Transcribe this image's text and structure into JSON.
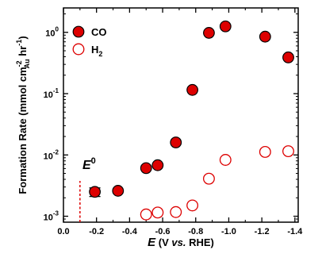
{
  "chart_data": {
    "type": "scatter",
    "x": [
      -0.19,
      -0.33,
      -0.5,
      -0.57,
      -0.68,
      -0.78,
      -0.88,
      -0.98,
      -1.22,
      -1.36
    ],
    "series": [
      {
        "name": "CO",
        "name_main": "CO",
        "name_sub": "",
        "marker": "filled-circle",
        "values": [
          0.0025,
          0.0026,
          0.0061,
          0.0068,
          0.016,
          0.115,
          0.98,
          1.25,
          0.85,
          0.39
        ],
        "error_bars": [
          {
            "index": 0,
            "low": 0.0021,
            "high": 0.0029
          }
        ]
      },
      {
        "name": "H2",
        "name_main": "H",
        "name_sub": "2",
        "marker": "open-circle",
        "x": [
          -0.5,
          -0.57,
          -0.68,
          -0.78,
          -0.88,
          -0.98,
          -1.22,
          -1.36
        ],
        "values": [
          0.00107,
          0.00115,
          0.00117,
          0.0015,
          0.0041,
          0.0083,
          0.0112,
          0.0115
        ]
      }
    ],
    "xlim": [
      0.0,
      -1.42
    ],
    "x_ticks": [
      0.0,
      -0.2,
      -0.4,
      -0.6,
      -0.8,
      -1.0,
      -1.2,
      -1.4
    ],
    "ylim": [
      0.0008,
      2.5
    ],
    "yscale": "log",
    "y_ticks": [
      {
        "value": 0.001,
        "base": "10",
        "exp": "-3"
      },
      {
        "value": 0.01,
        "base": "10",
        "exp": "-2"
      },
      {
        "value": 0.1,
        "base": "10",
        "exp": "-1"
      },
      {
        "value": 1,
        "base": "10",
        "exp": "0"
      }
    ],
    "xlabel": {
      "e": "E",
      "rest": " (V ",
      "vs": "vs.",
      "end": " RHE)"
    },
    "ylabel": {
      "main": "Formation Rate  (mmol cm",
      "sup": "-2",
      "sub": "Au",
      "rest": " hr",
      "sup2": "-1",
      "close": ")"
    },
    "annotation": {
      "label": "E",
      "sup": "0",
      "x": -0.1
    },
    "legend_placement": "top-left",
    "grid": false,
    "colors": {
      "co": "#dd0000",
      "h2": "#dd0000",
      "axis": "#000000",
      "annotation": "#dd0000"
    }
  }
}
